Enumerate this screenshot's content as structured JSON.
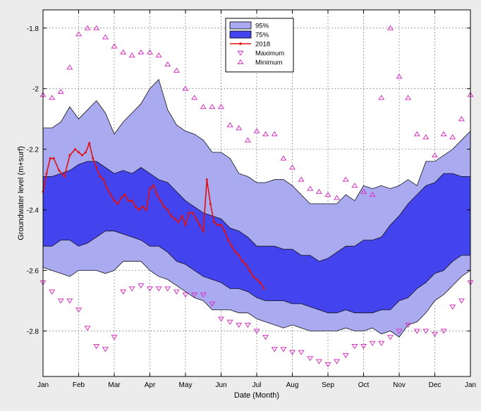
{
  "chart_data": {
    "type": "area",
    "title": "",
    "xlabel": "Date (Month)",
    "ylabel": "Groundwater level (m+surf)",
    "ylim": [
      -2.95,
      -1.74
    ],
    "xlim": [
      0,
      12
    ],
    "yticks": [
      -1.8,
      -2,
      -2.2,
      -2.4,
      -2.6,
      -2.8
    ],
    "ytick_labels": [
      "-1.8",
      "-2",
      "-2.2",
      "-2.4",
      "-2.6",
      "-2.8"
    ],
    "xticks": [
      0,
      1,
      2,
      3,
      4,
      5,
      6,
      7,
      8,
      9,
      10,
      11,
      12
    ],
    "xtick_labels": [
      "Jan",
      "Feb",
      "Mar",
      "Apr",
      "May",
      "Jun",
      "Jul",
      "Aug",
      "Sep",
      "Oct",
      "Nov",
      "Dec",
      "Jan"
    ],
    "grid": true,
    "legend": {
      "position": "top-center",
      "entries": [
        {
          "label": "95%",
          "kind": "patch",
          "color": "#aaaaf0"
        },
        {
          "label": "75%",
          "kind": "patch",
          "color": "#4444ee"
        },
        {
          "label": "2018",
          "kind": "line",
          "color": "#e01010"
        },
        {
          "label": "Maximum",
          "kind": "tri-down",
          "color": "#d633c0"
        },
        {
          "label": "Minimum",
          "kind": "tri-up",
          "color": "#d633c0"
        }
      ]
    },
    "colors": {
      "band95": "#aaaaf0",
      "band75": "#4444ee",
      "line2018": "#e01010",
      "markers": "#d633c0",
      "axes_bg": "#ffffff",
      "grid": "#555555"
    },
    "band_x": [
      0,
      0.25,
      0.5,
      0.75,
      1,
      1.25,
      1.5,
      1.75,
      2,
      2.25,
      2.5,
      2.75,
      3,
      3.25,
      3.5,
      3.75,
      4,
      4.25,
      4.5,
      4.75,
      5,
      5.25,
      5.5,
      5.75,
      6,
      6.25,
      6.5,
      6.75,
      7,
      7.25,
      7.5,
      7.75,
      8,
      8.25,
      8.5,
      8.75,
      9,
      9.25,
      9.5,
      9.75,
      10,
      10.25,
      10.5,
      10.75,
      11,
      11.25,
      11.5,
      11.75,
      12
    ],
    "band95_upper": [
      -2.13,
      -2.13,
      -2.11,
      -2.06,
      -2.1,
      -2.07,
      -2.04,
      -2.08,
      -2.15,
      -2.11,
      -2.08,
      -2.05,
      -2.0,
      -1.97,
      -2.07,
      -2.12,
      -2.14,
      -2.15,
      -2.17,
      -2.21,
      -2.21,
      -2.23,
      -2.28,
      -2.29,
      -2.31,
      -2.31,
      -2.3,
      -2.3,
      -2.32,
      -2.35,
      -2.38,
      -2.38,
      -2.38,
      -2.38,
      -2.35,
      -2.37,
      -2.32,
      -2.33,
      -2.32,
      -2.33,
      -2.32,
      -2.3,
      -2.32,
      -2.24,
      -2.24,
      -2.22,
      -2.2,
      -2.17,
      -2.14
    ],
    "band75_upper": [
      -2.29,
      -2.29,
      -2.28,
      -2.27,
      -2.25,
      -2.24,
      -2.24,
      -2.26,
      -2.28,
      -2.27,
      -2.28,
      -2.26,
      -2.28,
      -2.3,
      -2.31,
      -2.34,
      -2.37,
      -2.39,
      -2.41,
      -2.42,
      -2.43,
      -2.46,
      -2.47,
      -2.49,
      -2.52,
      -2.52,
      -2.52,
      -2.53,
      -2.53,
      -2.55,
      -2.55,
      -2.57,
      -2.56,
      -2.54,
      -2.52,
      -2.52,
      -2.5,
      -2.5,
      -2.49,
      -2.45,
      -2.42,
      -2.38,
      -2.35,
      -2.32,
      -2.31,
      -2.28,
      -2.28,
      -2.29,
      -2.29
    ],
    "band75_lower": [
      -2.52,
      -2.52,
      -2.5,
      -2.5,
      -2.52,
      -2.51,
      -2.49,
      -2.47,
      -2.47,
      -2.48,
      -2.49,
      -2.5,
      -2.52,
      -2.52,
      -2.54,
      -2.57,
      -2.58,
      -2.6,
      -2.62,
      -2.63,
      -2.64,
      -2.66,
      -2.66,
      -2.67,
      -2.69,
      -2.7,
      -2.7,
      -2.7,
      -2.71,
      -2.71,
      -2.72,
      -2.73,
      -2.74,
      -2.74,
      -2.73,
      -2.74,
      -2.74,
      -2.74,
      -2.73,
      -2.73,
      -2.7,
      -2.69,
      -2.66,
      -2.64,
      -2.61,
      -2.6,
      -2.57,
      -2.55,
      -2.55
    ],
    "band95_lower": [
      -2.59,
      -2.6,
      -2.61,
      -2.62,
      -2.6,
      -2.6,
      -2.6,
      -2.61,
      -2.6,
      -2.57,
      -2.57,
      -2.57,
      -2.6,
      -2.62,
      -2.63,
      -2.65,
      -2.67,
      -2.69,
      -2.7,
      -2.73,
      -2.73,
      -2.73,
      -2.74,
      -2.74,
      -2.76,
      -2.77,
      -2.78,
      -2.79,
      -2.78,
      -2.79,
      -2.8,
      -2.8,
      -2.8,
      -2.8,
      -2.79,
      -2.8,
      -2.8,
      -2.79,
      -2.81,
      -2.8,
      -2.82,
      -2.78,
      -2.77,
      -2.74,
      -2.7,
      -2.68,
      -2.65,
      -2.62,
      -2.6
    ],
    "series_2018": {
      "name": "2018",
      "x": [
        0,
        0.1,
        0.2,
        0.3,
        0.45,
        0.6,
        0.75,
        0.9,
        1.0,
        1.1,
        1.2,
        1.3,
        1.4,
        1.5,
        1.6,
        1.7,
        1.8,
        1.9,
        2.0,
        2.1,
        2.2,
        2.3,
        2.4,
        2.5,
        2.6,
        2.7,
        2.8,
        2.9,
        3.0,
        3.1,
        3.2,
        3.3,
        3.4,
        3.5,
        3.6,
        3.7,
        3.8,
        3.9,
        4.0,
        4.1,
        4.2,
        4.3,
        4.4,
        4.5,
        4.6,
        4.7,
        4.8,
        4.9,
        5.0,
        5.1,
        5.2,
        5.3,
        5.4,
        5.5,
        5.6,
        5.7,
        5.8,
        5.9,
        6.0,
        6.1,
        6.2
      ],
      "y": [
        -2.34,
        -2.28,
        -2.23,
        -2.23,
        -2.27,
        -2.29,
        -2.22,
        -2.2,
        -2.21,
        -2.22,
        -2.21,
        -2.18,
        -2.23,
        -2.26,
        -2.29,
        -2.3,
        -2.33,
        -2.35,
        -2.37,
        -2.38,
        -2.36,
        -2.35,
        -2.37,
        -2.37,
        -2.39,
        -2.4,
        -2.39,
        -2.4,
        -2.33,
        -2.32,
        -2.35,
        -2.37,
        -2.39,
        -2.4,
        -2.42,
        -2.43,
        -2.44,
        -2.42,
        -2.45,
        -2.41,
        -2.41,
        -2.43,
        -2.45,
        -2.47,
        -2.3,
        -2.38,
        -2.44,
        -2.45,
        -2.45,
        -2.47,
        -2.5,
        -2.52,
        -2.54,
        -2.55,
        -2.57,
        -2.58,
        -2.6,
        -2.62,
        -2.63,
        -2.64,
        -2.66
      ]
    },
    "maximum": {
      "name": "Maximum",
      "x": [
        0,
        0.25,
        0.5,
        0.75,
        1,
        1.25,
        1.5,
        1.75,
        2,
        2.25,
        2.5,
        2.75,
        3,
        3.25,
        3.5,
        3.75,
        4,
        4.25,
        4.5,
        4.75,
        5,
        5.25,
        5.5,
        5.75,
        6,
        6.25,
        6.5,
        6.75,
        7,
        7.25,
        7.5,
        7.75,
        8,
        8.25,
        8.5,
        8.75,
        9,
        9.25,
        9.5,
        9.75,
        10,
        10.25,
        10.5,
        10.75,
        11,
        11.25,
        11.5,
        11.75,
        12
      ],
      "y": [
        -2.64,
        -2.67,
        -2.7,
        -2.7,
        -2.73,
        -2.79,
        -2.85,
        -2.86,
        -2.82,
        -2.67,
        -2.66,
        -2.65,
        -2.66,
        -2.66,
        -2.66,
        -2.67,
        -2.68,
        -2.68,
        -2.68,
        -2.71,
        -2.76,
        -2.77,
        -2.78,
        -2.78,
        -2.8,
        -2.82,
        -2.86,
        -2.86,
        -2.87,
        -2.87,
        -2.89,
        -2.9,
        -2.91,
        -2.9,
        -2.88,
        -2.85,
        -2.85,
        -2.84,
        -2.84,
        -2.82,
        -2.8,
        -2.78,
        -2.8,
        -2.8,
        -2.81,
        -2.8,
        -2.72,
        -2.7,
        -2.64
      ]
    },
    "minimum": {
      "name": "Minimum",
      "x": [
        0,
        0.25,
        0.5,
        0.75,
        1,
        1.25,
        1.5,
        1.75,
        2,
        2.25,
        2.5,
        2.75,
        3,
        3.25,
        3.5,
        3.75,
        4,
        4.25,
        4.5,
        4.75,
        5,
        5.25,
        5.5,
        5.75,
        6,
        6.25,
        6.5,
        6.75,
        7,
        7.25,
        7.5,
        7.75,
        8,
        8.25,
        8.5,
        8.75,
        9,
        9.25,
        9.5,
        9.75,
        10,
        10.25,
        10.5,
        10.75,
        11,
        11.25,
        11.5,
        11.75,
        12
      ],
      "y": [
        -2.02,
        -2.03,
        -2.01,
        -1.93,
        -1.82,
        -1.8,
        -1.8,
        -1.83,
        -1.86,
        -1.88,
        -1.89,
        -1.88,
        -1.88,
        -1.89,
        -1.92,
        -1.94,
        -2.0,
        -2.03,
        -2.06,
        -2.06,
        -2.06,
        -2.12,
        -2.13,
        -2.17,
        -2.14,
        -2.15,
        -2.15,
        -2.23,
        -2.26,
        -2.3,
        -2.33,
        -2.34,
        -2.35,
        -2.36,
        -2.3,
        -2.32,
        -2.34,
        -2.35,
        -2.03,
        -1.8,
        -1.96,
        -2.03,
        -2.15,
        -2.16,
        -2.22,
        -2.15,
        -2.16,
        -2.1,
        -2.02
      ]
    }
  }
}
